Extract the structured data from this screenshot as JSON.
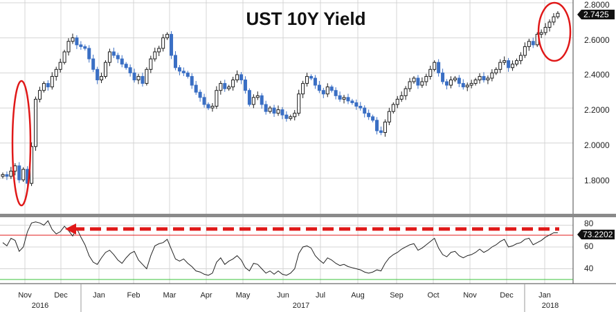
{
  "chart_data": [
    {
      "type": "candlestick",
      "title": "UST 10Y Yield",
      "ylim": [
        1.64,
        2.8
      ],
      "yticks": [
        "2.8000",
        "2.6000",
        "2.4000",
        "2.2000",
        "2.0000",
        "1.8000"
      ],
      "ytick_values": [
        2.8,
        2.6,
        2.4,
        2.2,
        2.0,
        1.8
      ],
      "last_value_label": "2.7425",
      "last_value": 2.7425,
      "grid": true,
      "annotations": [
        "red ellipse around Nov 2016 spike",
        "red ellipse around Jan 2018 high"
      ],
      "x": [
        0,
        6,
        12,
        18,
        24,
        30,
        36,
        42,
        48,
        54,
        60,
        66,
        72,
        78,
        84,
        90,
        96,
        102,
        108,
        114,
        120,
        126,
        132,
        138,
        144,
        150,
        156,
        162,
        168,
        174,
        180,
        186,
        192,
        198,
        204,
        210,
        216,
        222,
        228,
        234,
        240,
        246,
        252,
        258,
        264,
        270,
        276,
        282,
        288,
        294,
        300,
        306,
        312,
        318,
        324,
        330,
        336,
        342,
        348,
        354,
        360,
        366,
        372,
        378,
        384,
        390,
        396,
        402,
        408,
        414,
        420,
        426,
        432,
        438,
        444,
        450,
        456,
        462,
        468,
        474,
        480,
        486,
        492,
        498,
        504,
        510,
        516,
        522,
        528,
        534,
        540,
        546,
        552,
        558,
        564,
        570,
        576,
        582,
        588,
        594,
        600,
        606,
        612,
        618,
        624,
        630,
        636,
        642,
        648,
        654,
        660,
        666,
        672,
        678,
        684,
        690,
        696,
        702,
        708,
        714,
        720,
        726,
        732,
        738,
        744,
        750,
        756,
        762,
        768,
        774,
        780,
        786,
        792,
        798,
        804,
        810
      ],
      "values": [
        1.82,
        1.81,
        1.84,
        1.87,
        1.79,
        1.85,
        1.77,
        1.98,
        2.25,
        2.3,
        2.34,
        2.32,
        2.38,
        2.42,
        2.46,
        2.52,
        2.58,
        2.6,
        2.56,
        2.55,
        2.54,
        2.48,
        2.42,
        2.36,
        2.38,
        2.46,
        2.52,
        2.5,
        2.48,
        2.45,
        2.43,
        2.4,
        2.36,
        2.38,
        2.34,
        2.42,
        2.48,
        2.52,
        2.54,
        2.6,
        2.62,
        2.5,
        2.43,
        2.41,
        2.4,
        2.38,
        2.33,
        2.29,
        2.26,
        2.22,
        2.2,
        2.21,
        2.3,
        2.34,
        2.31,
        2.32,
        2.36,
        2.39,
        2.36,
        2.3,
        2.22,
        2.26,
        2.27,
        2.22,
        2.18,
        2.2,
        2.17,
        2.19,
        2.16,
        2.14,
        2.15,
        2.17,
        2.28,
        2.34,
        2.38,
        2.37,
        2.33,
        2.3,
        2.28,
        2.32,
        2.3,
        2.27,
        2.25,
        2.26,
        2.24,
        2.23,
        2.21,
        2.2,
        2.17,
        2.15,
        2.13,
        2.07,
        2.06,
        2.12,
        2.18,
        2.22,
        2.25,
        2.27,
        2.31,
        2.35,
        2.37,
        2.33,
        2.35,
        2.38,
        2.42,
        2.46,
        2.4,
        2.35,
        2.33,
        2.36,
        2.37,
        2.34,
        2.32,
        2.33,
        2.34,
        2.36,
        2.38,
        2.36,
        2.37,
        2.4,
        2.42,
        2.46,
        2.47,
        2.43,
        2.45,
        2.47,
        2.5,
        2.55,
        2.58,
        2.56,
        2.62,
        2.63,
        2.66,
        2.69,
        2.72,
        2.74
      ]
    },
    {
      "type": "line",
      "ylim": [
        27,
        86
      ],
      "yticks": [
        "80",
        "60",
        "40"
      ],
      "ytick_values": [
        80,
        60,
        40
      ],
      "last_value_label": "73.2202",
      "last_value": 73.2202,
      "upper_threshold": 70,
      "lower_threshold": 30,
      "annotations": [
        "red dashed arrow along the 70 level"
      ],
      "x": [
        0,
        6,
        12,
        18,
        24,
        30,
        36,
        42,
        48,
        54,
        60,
        66,
        72,
        78,
        84,
        90,
        96,
        102,
        108,
        114,
        120,
        126,
        132,
        138,
        144,
        150,
        156,
        162,
        168,
        174,
        180,
        186,
        192,
        198,
        204,
        210,
        216,
        222,
        228,
        234,
        240,
        246,
        252,
        258,
        264,
        270,
        276,
        282,
        288,
        294,
        300,
        306,
        312,
        318,
        324,
        330,
        336,
        342,
        348,
        354,
        360,
        366,
        372,
        378,
        384,
        390,
        396,
        402,
        408,
        414,
        420,
        426,
        432,
        438,
        444,
        450,
        456,
        462,
        468,
        474,
        480,
        486,
        492,
        498,
        504,
        510,
        516,
        522,
        528,
        534,
        540,
        546,
        552,
        558,
        564,
        570,
        576,
        582,
        588,
        594,
        600,
        606,
        612,
        618,
        624,
        630,
        636,
        642,
        648,
        654,
        660,
        666,
        672,
        678,
        684,
        690,
        696,
        702,
        708,
        714,
        720,
        726,
        732,
        738,
        744,
        750,
        756,
        762,
        768,
        774,
        780,
        786,
        792,
        798,
        804,
        810
      ],
      "values": [
        64,
        61,
        68,
        66,
        56,
        60,
        74,
        82,
        83,
        82,
        80,
        84,
        76,
        72,
        74,
        79,
        75,
        70,
        77,
        69,
        62,
        52,
        46,
        44,
        50,
        55,
        57,
        53,
        48,
        45,
        50,
        54,
        56,
        48,
        44,
        40,
        52,
        61,
        63,
        64,
        67,
        58,
        49,
        47,
        49,
        45,
        42,
        38,
        37,
        35,
        34,
        36,
        46,
        50,
        44,
        47,
        49,
        52,
        48,
        41,
        38,
        45,
        44,
        40,
        36,
        38,
        35,
        38,
        35,
        34,
        36,
        40,
        54,
        60,
        61,
        59,
        52,
        48,
        45,
        50,
        48,
        45,
        43,
        44,
        42,
        41,
        40,
        39,
        37,
        36,
        37,
        39,
        38,
        45,
        50,
        53,
        55,
        58,
        60,
        62,
        63,
        57,
        59,
        62,
        65,
        68,
        59,
        53,
        51,
        55,
        56,
        52,
        50,
        52,
        53,
        55,
        58,
        55,
        57,
        60,
        62,
        65,
        67,
        60,
        61,
        63,
        64,
        67,
        68,
        62,
        64,
        66,
        69,
        71,
        73,
        73
      ]
    }
  ],
  "x_axis": {
    "months": [
      "Nov",
      "Dec",
      "Jan",
      "Feb",
      "Mar",
      "Apr",
      "May",
      "Jun",
      "Jul",
      "Aug",
      "Sep",
      "Oct",
      "Nov",
      "Dec",
      "Jan"
    ],
    "years": [
      "2016",
      "2017",
      "2018"
    ]
  },
  "colors": {
    "accent_red": "#e01818",
    "up_candle": "#1a1a1a",
    "down_candle": "#3a6fc4",
    "rsi_line": "#222222",
    "oversold_line": "#39c339",
    "panel_separator": "#8a8a8a",
    "grid": "#d4d4d4"
  }
}
